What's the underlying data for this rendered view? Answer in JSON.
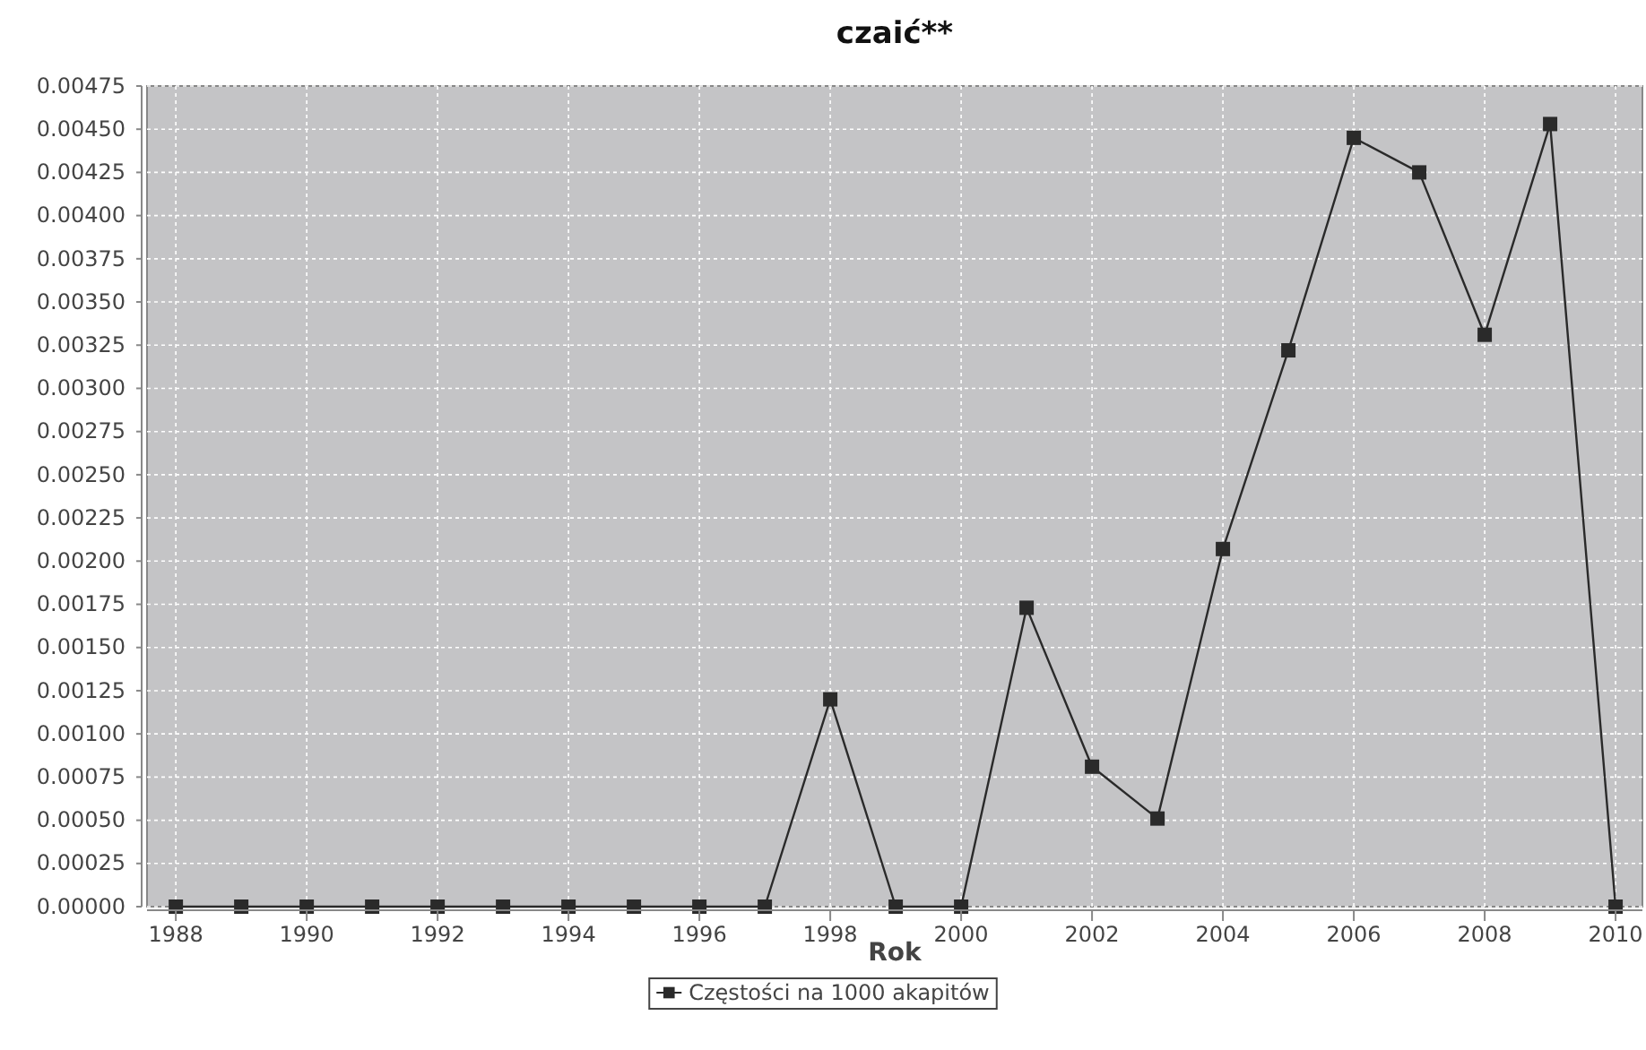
{
  "chart_data": {
    "type": "line",
    "title": "czaić**",
    "xlabel": "Rok",
    "x": [
      1988,
      1989,
      1990,
      1991,
      1992,
      1993,
      1994,
      1995,
      1996,
      1997,
      1998,
      1999,
      2000,
      2001,
      2002,
      2003,
      2004,
      2005,
      2006,
      2007,
      2008,
      2009,
      2010
    ],
    "series": [
      {
        "name": "Częstości na 1000 akapitów",
        "color": "#2a2a2a",
        "values": [
          0,
          0,
          0,
          0,
          0,
          0,
          0,
          0,
          0,
          0,
          0.0012,
          0,
          0,
          0.00173,
          0.00081,
          0.00051,
          0.00207,
          0.00322,
          0.00445,
          0.00425,
          0.00331,
          0.00453,
          0
        ]
      }
    ],
    "xlim": [
      1987.56,
      2010.41
    ],
    "xticks": [
      1988,
      1990,
      1992,
      1994,
      1996,
      1998,
      2000,
      2002,
      2004,
      2006,
      2008,
      2010
    ],
    "ylim": [
      0,
      0.00475
    ],
    "yticks": [
      {
        "value": 0,
        "label": "0.00000"
      },
      {
        "value": 0.00025,
        "label": "0.00025"
      },
      {
        "value": 0.0005,
        "label": "0.00050"
      },
      {
        "value": 0.00075,
        "label": "0.00075"
      },
      {
        "value": 0.001,
        "label": "0.00100"
      },
      {
        "value": 0.00125,
        "label": "0.00125"
      },
      {
        "value": 0.0015,
        "label": "0.00150"
      },
      {
        "value": 0.00175,
        "label": "0.00175"
      },
      {
        "value": 0.002,
        "label": "0.00200"
      },
      {
        "value": 0.00225,
        "label": "0.00225"
      },
      {
        "value": 0.0025,
        "label": "0.00250"
      },
      {
        "value": 0.00275,
        "label": "0.00275"
      },
      {
        "value": 0.003,
        "label": "0.00300"
      },
      {
        "value": 0.00325,
        "label": "0.00325"
      },
      {
        "value": 0.0035,
        "label": "0.00350"
      },
      {
        "value": 0.00375,
        "label": "0.00375"
      },
      {
        "value": 0.004,
        "label": "0.00400"
      },
      {
        "value": 0.00425,
        "label": "0.00425"
      },
      {
        "value": 0.0045,
        "label": "0.00450"
      },
      {
        "value": 0.00475,
        "label": "0.00475"
      }
    ],
    "grid": true,
    "legend": "bottom",
    "marker": "square",
    "line_style": "solid"
  }
}
